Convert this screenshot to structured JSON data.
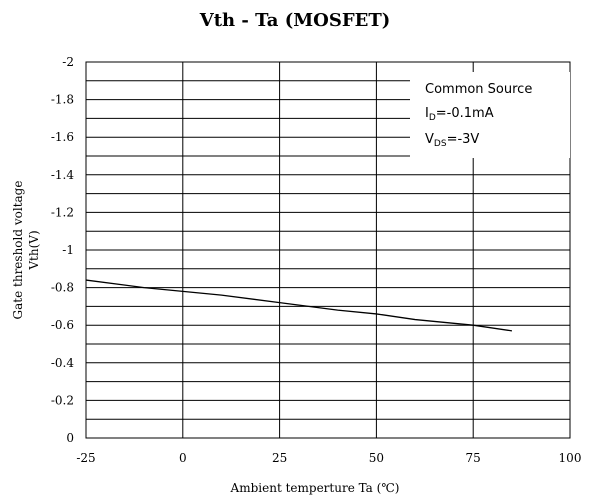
{
  "chart_data": {
    "type": "line",
    "title": "Vth - Ta (MOSFET)",
    "xlabel": "Ambient temperture  Ta (℃)",
    "ylabel_line1": "Gate threshold voltage",
    "ylabel_line2": "Vth(V)",
    "xlim": [
      -25,
      100
    ],
    "ylim": [
      0,
      -2
    ],
    "x_ticks": [
      -25,
      0,
      25,
      50,
      75,
      100
    ],
    "x_tick_labels": [
      "-25",
      "0",
      "25",
      "50",
      "75",
      "100"
    ],
    "y_ticks": [
      -2,
      -1.8,
      -1.6,
      -1.4,
      -1.2,
      -1,
      -0.8,
      -0.6,
      -0.4,
      -0.2,
      0
    ],
    "y_tick_labels": [
      "-2",
      "-1.8",
      "-1.6",
      "-1.4",
      "-1.2",
      "-1",
      "-0.8",
      "-0.6",
      "-0.4",
      "-0.2",
      "0"
    ],
    "grid": true,
    "legend": {
      "placement": "top-right",
      "line1": "Common Source",
      "line2_main": "I",
      "line2_sub": "D",
      "line2_rest": "=-0.1mA",
      "line3_main": "V",
      "line3_sub": "DS",
      "line3_rest": "=-3V"
    },
    "series": [
      {
        "color": "#000000",
        "x": [
          -25,
          -10,
          0,
          10,
          25,
          40,
          50,
          60,
          75,
          85
        ],
        "y": [
          -0.84,
          -0.8,
          -0.78,
          -0.76,
          -0.72,
          -0.68,
          -0.66,
          -0.63,
          -0.6,
          -0.57
        ]
      }
    ]
  }
}
